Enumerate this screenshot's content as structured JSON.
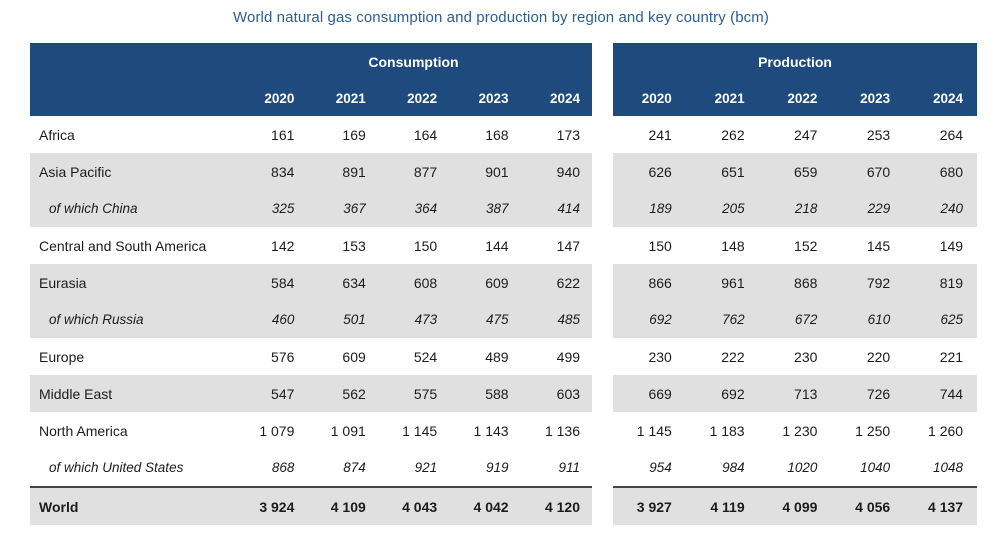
{
  "chart_data": {
    "type": "table",
    "title": "World natural gas consumption and production by region and key country (bcm)",
    "group_labels": {
      "consumption": "Consumption",
      "production": "Production"
    },
    "years": [
      "2020",
      "2021",
      "2022",
      "2023",
      "2024"
    ],
    "rows": [
      {
        "name": "Africa",
        "sub": false,
        "consumption": [
          "161",
          "169",
          "164",
          "168",
          "173"
        ],
        "production": [
          "241",
          "262",
          "247",
          "253",
          "264"
        ]
      },
      {
        "name": "Asia Pacific",
        "sub": false,
        "consumption": [
          "834",
          "891",
          "877",
          "901",
          "940"
        ],
        "production": [
          "626",
          "651",
          "659",
          "670",
          "680"
        ]
      },
      {
        "name": "of which China",
        "sub": true,
        "consumption": [
          "325",
          "367",
          "364",
          "387",
          "414"
        ],
        "production": [
          "189",
          "205",
          "218",
          "229",
          "240"
        ]
      },
      {
        "name": "Central and South America",
        "sub": false,
        "consumption": [
          "142",
          "153",
          "150",
          "144",
          "147"
        ],
        "production": [
          "150",
          "148",
          "152",
          "145",
          "149"
        ]
      },
      {
        "name": "Eurasia",
        "sub": false,
        "consumption": [
          "584",
          "634",
          "608",
          "609",
          "622"
        ],
        "production": [
          "866",
          "961",
          "868",
          "792",
          "819"
        ]
      },
      {
        "name": "of which Russia",
        "sub": true,
        "consumption": [
          "460",
          "501",
          "473",
          "475",
          "485"
        ],
        "production": [
          "692",
          "762",
          "672",
          "610",
          "625"
        ]
      },
      {
        "name": "Europe",
        "sub": false,
        "consumption": [
          "576",
          "609",
          "524",
          "489",
          "499"
        ],
        "production": [
          "230",
          "222",
          "230",
          "220",
          "221"
        ]
      },
      {
        "name": "Middle East",
        "sub": false,
        "consumption": [
          "547",
          "562",
          "575",
          "588",
          "603"
        ],
        "production": [
          "669",
          "692",
          "713",
          "726",
          "744"
        ]
      },
      {
        "name": "North America",
        "sub": false,
        "consumption": [
          "1 079",
          "1 091",
          "1 145",
          "1 143",
          "1 136"
        ],
        "production": [
          "1 145",
          "1 183",
          "1 230",
          "1 250",
          "1 260"
        ]
      },
      {
        "name": "of which United States",
        "sub": true,
        "consumption": [
          "868",
          "874",
          "921",
          "919",
          "911"
        ],
        "production": [
          "954",
          "984",
          "1020",
          "1040",
          "1048"
        ]
      },
      {
        "name": "World",
        "sub": false,
        "consumption": [
          "3 924",
          "4 109",
          "4 043",
          "4 042",
          "4 120"
        ],
        "production": [
          "3 927",
          "4 119",
          "4 099",
          "4 056",
          "4 137"
        ]
      }
    ]
  },
  "colors": {
    "header_bg": "#1f4a7d",
    "row_stripe": "#e0e0e0",
    "title_text": "#2a5f96"
  }
}
